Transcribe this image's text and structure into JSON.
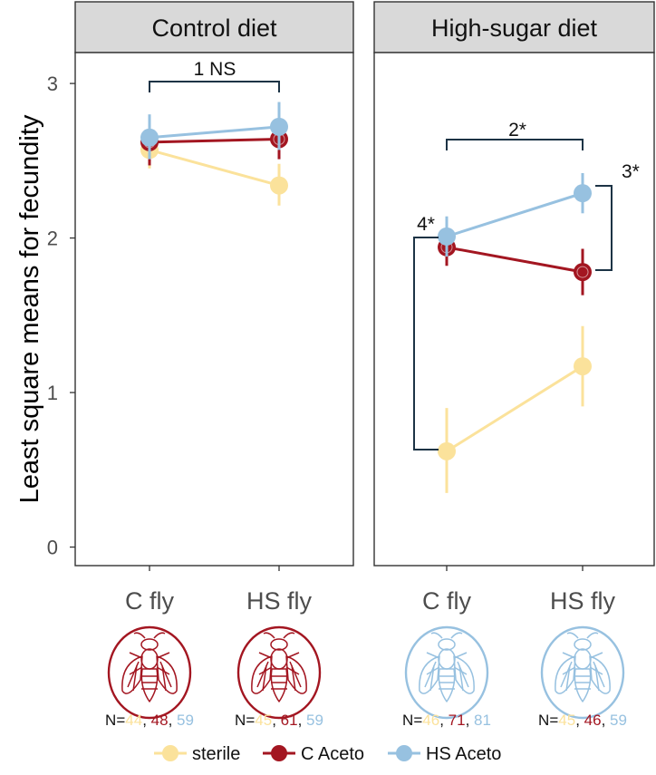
{
  "chart_data": {
    "type": "line",
    "ylabel": "Least square means for fecundity",
    "ylim": [
      -0.12,
      3.2
    ],
    "yticks": [
      "0",
      "1",
      "2",
      "3"
    ],
    "categories": [
      "C fly",
      "HS fly"
    ],
    "legend_position": "bottom",
    "colors": {
      "sterile": "#fbe29b",
      "C Aceto": "#a31621",
      "HS Aceto": "#97c1e0"
    },
    "panels": [
      {
        "title": "Control diet",
        "icon_color": "#a31621",
        "series": [
          {
            "name": "sterile",
            "values": [
              2.57,
              2.34
            ],
            "err_low": [
              2.45,
              2.21
            ],
            "err_high": [
              2.7,
              2.48
            ]
          },
          {
            "name": "C Aceto",
            "values": [
              2.62,
              2.64
            ],
            "err_low": [
              2.47,
              2.51
            ],
            "err_high": [
              2.77,
              2.76
            ]
          },
          {
            "name": "HS Aceto",
            "values": [
              2.65,
              2.72
            ],
            "err_low": [
              2.51,
              2.57
            ],
            "err_high": [
              2.8,
              2.88
            ]
          }
        ],
        "annotations": [
          {
            "label": "1 NS"
          }
        ],
        "n_labels": [
          {
            "prefix": "N=",
            "counts": [
              "44",
              "48",
              "59"
            ]
          },
          {
            "prefix": "N=",
            "counts": [
              "45",
              "61",
              "59"
            ]
          }
        ]
      },
      {
        "title": "High-sugar diet",
        "icon_color": "#97c1e0",
        "series": [
          {
            "name": "sterile",
            "values": [
              0.62,
              1.17
            ],
            "err_low": [
              0.35,
              0.91
            ],
            "err_high": [
              0.9,
              1.43
            ]
          },
          {
            "name": "C Aceto",
            "values": [
              1.94,
              1.78
            ],
            "err_low": [
              1.82,
              1.63
            ],
            "err_high": [
              2.06,
              1.93
            ]
          },
          {
            "name": "HS Aceto",
            "values": [
              2.01,
              2.29
            ],
            "err_low": [
              1.88,
              2.16
            ],
            "err_high": [
              2.14,
              2.42
            ]
          }
        ],
        "annotations": [
          {
            "label": "2*"
          },
          {
            "label": "3*"
          },
          {
            "label": "4*"
          }
        ],
        "n_labels": [
          {
            "prefix": "N=",
            "counts": [
              "46",
              "71",
              "81"
            ]
          },
          {
            "prefix": "N=",
            "counts": [
              "45",
              "46",
              "59"
            ]
          }
        ]
      }
    ],
    "legend": [
      "sterile",
      "C Aceto",
      "HS Aceto"
    ]
  }
}
